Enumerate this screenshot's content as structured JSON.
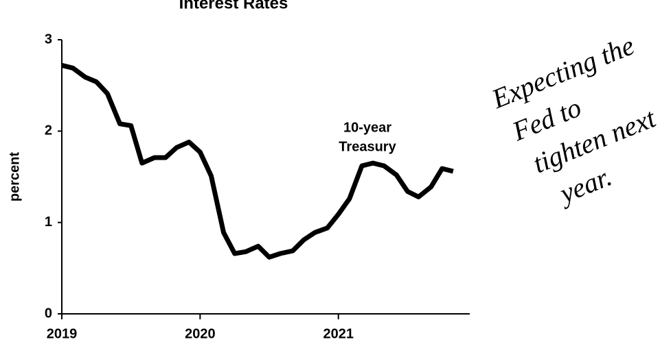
{
  "chart_data": {
    "type": "line",
    "title": "Interest Rates",
    "ylabel": "percent",
    "x": [
      2019,
      2019.08,
      2019.17,
      2019.25,
      2019.33,
      2019.42,
      2019.5,
      2019.58,
      2019.67,
      2019.75,
      2019.83,
      2019.92,
      2020,
      2020.08,
      2020.17,
      2020.25,
      2020.33,
      2020.42,
      2020.5,
      2020.58,
      2020.67,
      2020.75,
      2020.83,
      2020.92,
      2021,
      2021.08,
      2021.17,
      2021.25,
      2021.33,
      2021.42,
      2021.5,
      2021.58,
      2021.67,
      2021.75,
      2021.83
    ],
    "series": [
      {
        "name": "10-year Treasury",
        "color": "#000000",
        "values": [
          2.72,
          2.69,
          2.59,
          2.54,
          2.41,
          2.08,
          2.06,
          1.65,
          1.71,
          1.71,
          1.82,
          1.88,
          1.77,
          1.51,
          0.89,
          0.66,
          0.68,
          0.74,
          0.62,
          0.66,
          0.69,
          0.81,
          0.89,
          0.94,
          1.09,
          1.26,
          1.62,
          1.65,
          1.62,
          1.52,
          1.34,
          1.28,
          1.39,
          1.59,
          1.56
        ]
      }
    ],
    "series_label": [
      "10-year",
      "Treasury"
    ],
    "annotation": [
      "Expecting the",
      "Fed to",
      "tighten next",
      "year."
    ],
    "xlim": [
      2019,
      2021.95
    ],
    "xticks": [
      2019,
      2020,
      2021
    ],
    "ylim": [
      0,
      3
    ],
    "yticks": [
      0,
      1,
      2,
      3
    ]
  }
}
